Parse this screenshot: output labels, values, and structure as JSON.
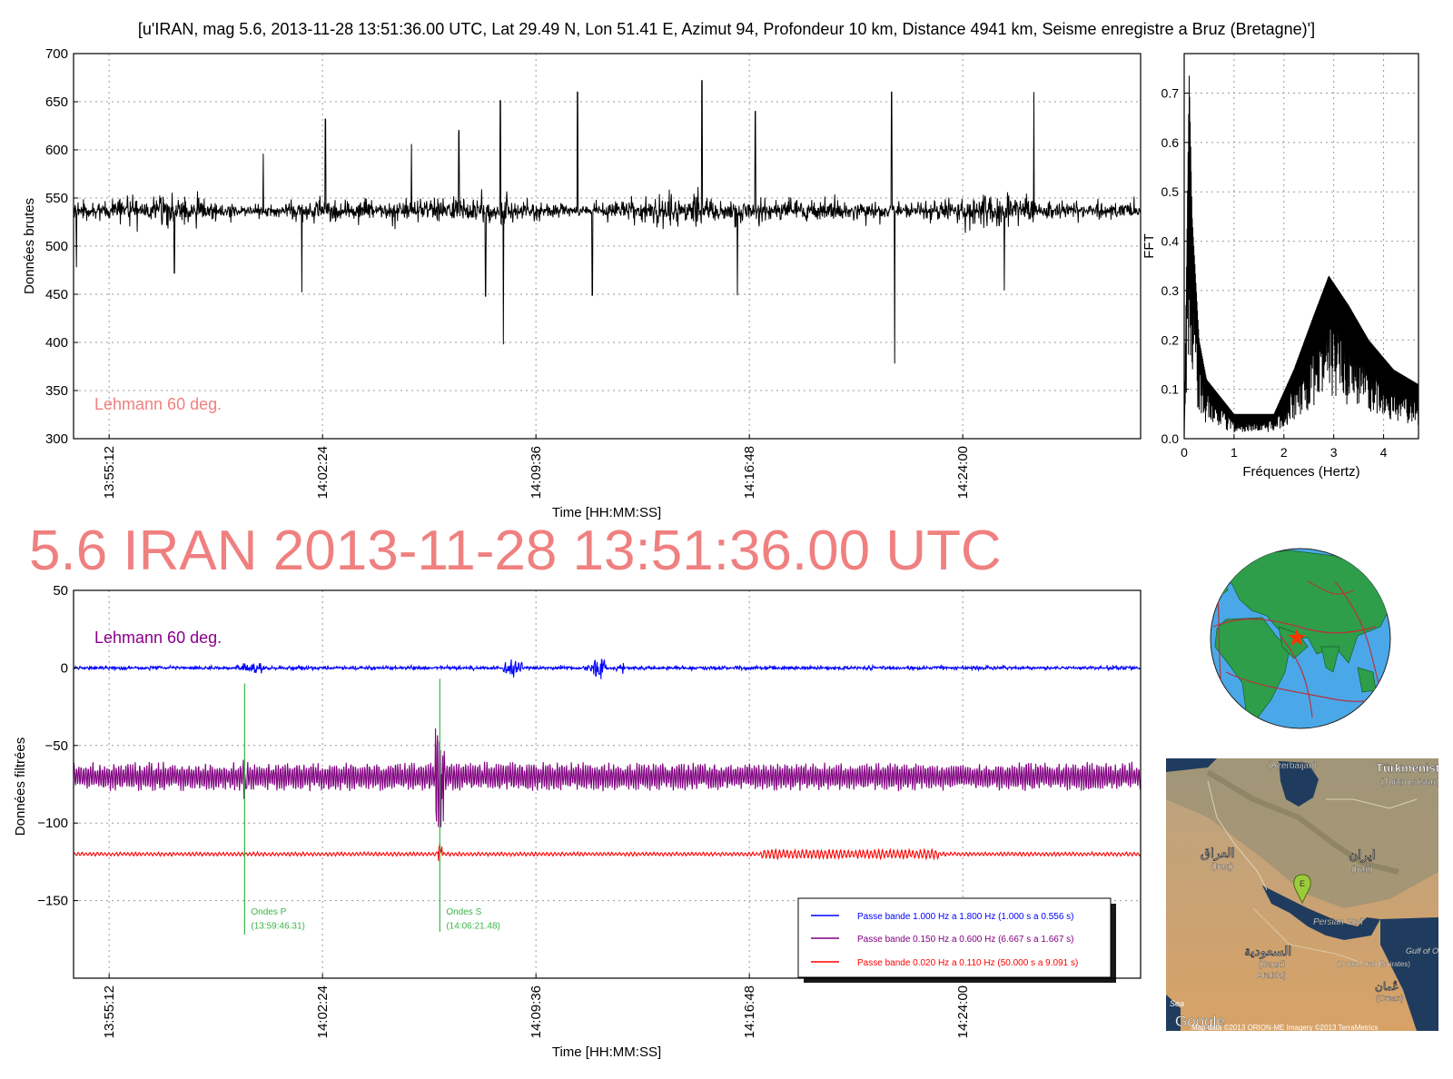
{
  "figure": {
    "title": "[u'IRAN, mag 5.6, 2013-11-28 13:51:36.00 UTC, Lat 29.49 N, Lon 51.41 E, Azimut 94, Profondeur 10 km, Distance 4941 km, Seisme enregistre a Bruz (Bretagne)']",
    "banner": "5.6 IRAN 2013-11-28 13:51:36.00 UTC",
    "banner_color": "#f08080"
  },
  "chart_data": [
    {
      "id": "raw",
      "type": "line",
      "xlabel": "Time [HH:MM:SS]",
      "ylabel": "Données brutes",
      "ylim": [
        300,
        700
      ],
      "yticks": [
        300,
        350,
        400,
        450,
        500,
        550,
        600,
        650,
        700
      ],
      "xlim_minutes": [
        -1.2,
        34.8
      ],
      "xticks": [
        "13:55:12",
        "14:02:24",
        "14:09:36",
        "14:16:48",
        "14:24:00"
      ],
      "grid": true,
      "annotation": "Lehmann 60 deg.",
      "annotation_color": "#f08080",
      "color": "#000000",
      "baseline": 537,
      "noise_amplitude": 22,
      "spikes": [
        {
          "t": "13:54:06",
          "value": 478
        },
        {
          "t": "13:57:24",
          "value": 472
        },
        {
          "t": "14:00:24",
          "value": 596
        },
        {
          "t": "14:01:42",
          "value": 452
        },
        {
          "t": "14:02:30",
          "value": 632
        },
        {
          "t": "14:05:24",
          "value": 606
        },
        {
          "t": "14:07:00",
          "value": 620
        },
        {
          "t": "14:07:54",
          "value": 448
        },
        {
          "t": "14:08:30",
          "value": 398
        },
        {
          "t": "14:08:24",
          "value": 651
        },
        {
          "t": "14:11:00",
          "value": 660
        },
        {
          "t": "14:11:30",
          "value": 449
        },
        {
          "t": "14:15:12",
          "value": 672
        },
        {
          "t": "14:16:24",
          "value": 449
        },
        {
          "t": "14:17:00",
          "value": 640
        },
        {
          "t": "14:21:42",
          "value": 378
        },
        {
          "t": "14:21:36",
          "value": 660
        },
        {
          "t": "14:25:24",
          "value": 454
        },
        {
          "t": "14:26:24",
          "value": 660
        }
      ]
    },
    {
      "id": "fft",
      "type": "line",
      "xlabel": "Fréquences (Hertz)",
      "ylabel": "FFT",
      "xlim": [
        0,
        4.7
      ],
      "ylim": [
        0,
        0.78
      ],
      "xticks": [
        0,
        1,
        2,
        3,
        4
      ],
      "yticks": [
        "0.0",
        "0.1",
        "0.2",
        "0.3",
        "0.4",
        "0.5",
        "0.6",
        "0.7"
      ],
      "grid": true,
      "color": "#000000",
      "peaks": [
        {
          "x": 0.1,
          "y": 0.74
        },
        {
          "x": 0.16,
          "y": 0.45
        },
        {
          "x": 0.3,
          "y": 0.2
        },
        {
          "x": 0.45,
          "y": 0.12
        },
        {
          "x": 1.0,
          "y": 0.05
        },
        {
          "x": 1.8,
          "y": 0.05
        },
        {
          "x": 2.2,
          "y": 0.14
        },
        {
          "x": 2.6,
          "y": 0.25
        },
        {
          "x": 2.9,
          "y": 0.33
        },
        {
          "x": 3.3,
          "y": 0.27
        },
        {
          "x": 3.7,
          "y": 0.2
        },
        {
          "x": 4.2,
          "y": 0.14
        },
        {
          "x": 4.7,
          "y": 0.11
        }
      ]
    },
    {
      "id": "filtered",
      "type": "line",
      "xlabel": "Time [HH:MM:SS]",
      "ylabel": "Données filtrées",
      "ylim": [
        -200,
        50
      ],
      "yticks": [
        -150,
        -100,
        -50,
        0,
        50
      ],
      "ytick_labels": [
        "−150",
        "−100",
        "−50",
        "0",
        "50"
      ],
      "xlim_minutes": [
        -1.2,
        34.8
      ],
      "xticks": [
        "13:55:12",
        "14:02:24",
        "14:09:36",
        "14:16:48",
        "14:24:00"
      ],
      "grid": true,
      "annotation": "Lehmann 60 deg.",
      "annotation_color": "#8b008b",
      "series": [
        {
          "name": "Passe bande 1.000 Hz a 1.800 Hz (1.000 s a 0.556 s)",
          "color": "#0000ff",
          "offset": 0,
          "amplitude": 2.5
        },
        {
          "name": "Passe bande 0.150 Hz a 0.600 Hz (6.667 s a 1.667 s)",
          "color": "#800080",
          "offset": -70,
          "amplitude": 8
        },
        {
          "name": "Passe bande 0.020 Hz a 0.110 Hz (50.000 s a 9.091 s)",
          "color": "#ff0000",
          "offset": -120,
          "amplitude": 1.2
        }
      ],
      "phases": [
        {
          "label": "Ondes P",
          "time_label": "(13:59:46.31)",
          "t": "13:59:46.31",
          "color": "#3cb44b",
          "y_top": -10,
          "y_bottom": -172
        },
        {
          "label": "Ondes S",
          "time_label": "(14:06:21.48)",
          "t": "14:06:21.48",
          "color": "#3cb44b",
          "y_top": -7,
          "y_bottom": -170
        }
      ]
    }
  ],
  "globe": {
    "ocean_color": "#4aa8e8",
    "land_color": "#2e9e4a",
    "epicenter_color": "#ff3300"
  },
  "map": {
    "labels": {
      "azerbaijan": "(Azerbaijan)",
      "turkmenistan": "Türkmenistan",
      "turkmenistan_sub": "(Turkmenistan)",
      "iraq_ar": "العراق",
      "iraq": "(Iraq)",
      "iran_fa": "ایران",
      "iran": "(Iran)",
      "persian_gulf": "Persian Gulf",
      "saudi_ar": "السعودية",
      "saudi": "(Saudi",
      "arabia": "Arabia)",
      "uae_ar": "الإمارات العربية المتحدة",
      "uae": "(United Arab Emirates)",
      "oman_ar": "عُمان",
      "oman": "(Oman)",
      "gulf_of_oman": "Gulf of Oman",
      "sea": "Sea",
      "google": "Google",
      "credits": "Map data ©2013 ORION-ME  Imagery ©2013 TerraMetrics",
      "marker": "E"
    }
  }
}
